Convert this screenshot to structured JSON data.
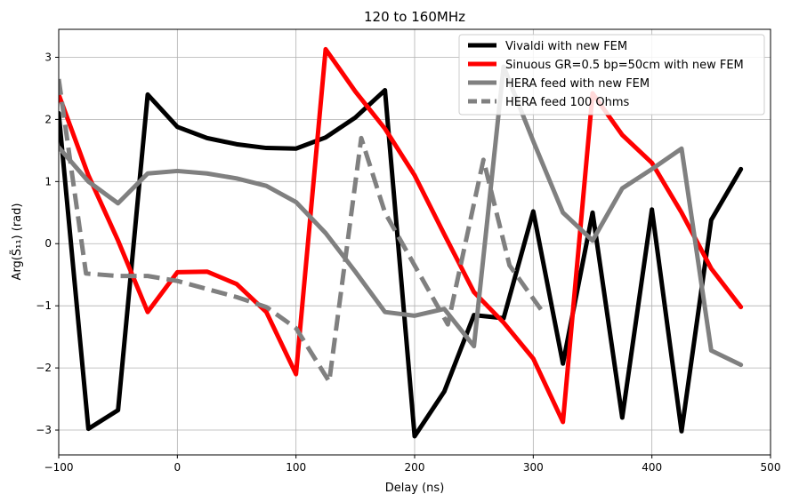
{
  "chart_data": {
    "type": "line",
    "title": "120 to 160MHz",
    "xlabel": "Delay (ns)",
    "ylabel": "Arg(S̃₁₁) (rad)",
    "xlim": [
      -100,
      500
    ],
    "ylim": [
      -3.4,
      3.45
    ],
    "xticks": [
      -100,
      0,
      100,
      200,
      300,
      400,
      500
    ],
    "yticks": [
      -3,
      -2,
      -1,
      0,
      1,
      2,
      3
    ],
    "grid": true,
    "legend_position": "top-right",
    "series": [
      {
        "name": "Vivaldi with new FEM",
        "color": "#000000",
        "dash": "solid",
        "x": [
          -100,
          -75,
          -50,
          -25,
          0,
          25,
          50,
          75,
          100,
          125,
          150,
          175,
          200,
          225,
          250,
          275,
          300,
          325,
          350,
          375,
          400,
          425,
          450,
          475
        ],
        "y": [
          2.1,
          -2.98,
          -2.68,
          2.4,
          1.88,
          1.7,
          1.6,
          1.54,
          1.53,
          1.71,
          2.03,
          2.47,
          -3.1,
          -2.38,
          -1.15,
          -1.2,
          0.52,
          -1.93,
          0.5,
          -2.8,
          0.55,
          -3.02,
          0.38,
          1.2
        ]
      },
      {
        "name": "Sinuous GR=0.5 bp=50cm with new FEM",
        "color": "#ff0000",
        "dash": "solid",
        "x": [
          -100,
          -75,
          -50,
          -25,
          0,
          25,
          50,
          75,
          100,
          125,
          150,
          175,
          200,
          225,
          250,
          275,
          300,
          325,
          350,
          375,
          400,
          425,
          450,
          475
        ],
        "y": [
          2.4,
          1.1,
          0.05,
          -1.1,
          -0.46,
          -0.45,
          -0.65,
          -1.1,
          -2.1,
          3.13,
          2.45,
          1.85,
          1.1,
          0.15,
          -0.78,
          -1.27,
          -1.85,
          -2.87,
          2.42,
          1.75,
          1.3,
          0.5,
          -0.4,
          -1.02
        ]
      },
      {
        "name": "HERA feed with new FEM",
        "color": "#808080",
        "dash": "solid",
        "x": [
          -100,
          -75,
          -50,
          -25,
          0,
          25,
          50,
          75,
          100,
          125,
          150,
          175,
          200,
          225,
          250,
          275,
          300,
          325,
          350,
          375,
          400,
          425,
          450,
          475
        ],
        "y": [
          1.55,
          1.0,
          0.65,
          1.13,
          1.17,
          1.13,
          1.05,
          0.93,
          0.67,
          0.17,
          -0.45,
          -1.1,
          -1.16,
          -1.05,
          -1.65,
          2.85,
          1.65,
          0.5,
          0.05,
          0.89,
          1.2,
          1.53,
          -1.72,
          -1.95
        ]
      },
      {
        "name": "HERA feed 100 Ohms",
        "color": "#808080",
        "dash": "dashed",
        "x": [
          -100,
          -77,
          -50,
          -25,
          0,
          25,
          50,
          75,
          100,
          128,
          155,
          175,
          200,
          228,
          258,
          280,
          308
        ],
        "y": [
          2.65,
          -0.48,
          -0.52,
          -0.52,
          -0.6,
          -0.73,
          -0.86,
          -1.02,
          -1.36,
          -2.22,
          1.7,
          0.5,
          -0.35,
          -1.3,
          1.35,
          -0.35,
          -1.1
        ]
      }
    ]
  }
}
